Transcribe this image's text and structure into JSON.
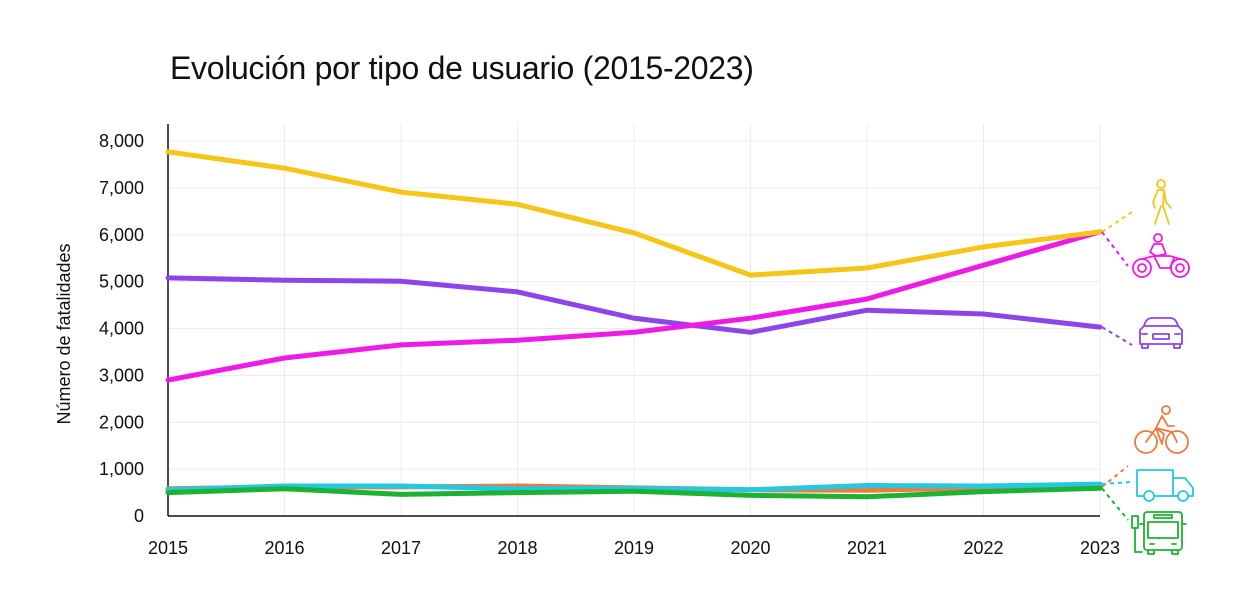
{
  "chart_data": {
    "type": "line",
    "title": "Evolución por tipo de usuario (2015-2023)",
    "xlabel": "",
    "ylabel": "Número de fatalidades",
    "x": [
      "2015",
      "2016",
      "2017",
      "2018",
      "2019",
      "2020",
      "2021",
      "2022",
      "2023"
    ],
    "ylim": [
      0,
      8000
    ],
    "yticks": [
      0,
      1000,
      2000,
      3000,
      4000,
      5000,
      6000,
      7000,
      8000
    ],
    "ytick_labels": [
      "0",
      "1,000",
      "2,000",
      "3,000",
      "4,000",
      "5,000",
      "6,000",
      "7,000",
      "8,000"
    ],
    "grid": true,
    "legend": "right (icons)",
    "series": [
      {
        "name": "Peatón",
        "icon": "pedestrian-icon",
        "color": "#F5C518",
        "values": [
          7770,
          7420,
          6910,
          6650,
          6040,
          5140,
          5290,
          5740,
          6060
        ]
      },
      {
        "name": "Motociclista",
        "icon": "motorcycle-icon",
        "color": "#EE1BE6",
        "values": [
          2900,
          3370,
          3650,
          3750,
          3920,
          4220,
          4630,
          5350,
          6060
        ]
      },
      {
        "name": "Automóvil",
        "icon": "car-icon",
        "color": "#8B45E8",
        "values": [
          5080,
          5030,
          5010,
          4780,
          4220,
          3920,
          4390,
          4310,
          4030
        ]
      },
      {
        "name": "Ciclista",
        "icon": "bicycle-icon",
        "color": "#F07A3A",
        "values": [
          580,
          620,
          620,
          640,
          600,
          560,
          550,
          600,
          620
        ]
      },
      {
        "name": "Camión",
        "icon": "truck-icon",
        "color": "#25C8E0",
        "values": [
          560,
          640,
          640,
          580,
          590,
          560,
          650,
          640,
          680
        ]
      },
      {
        "name": "Autobús",
        "icon": "bus-icon",
        "color": "#1DB233",
        "values": [
          500,
          580,
          460,
          500,
          530,
          440,
          410,
          520,
          590
        ]
      }
    ]
  }
}
